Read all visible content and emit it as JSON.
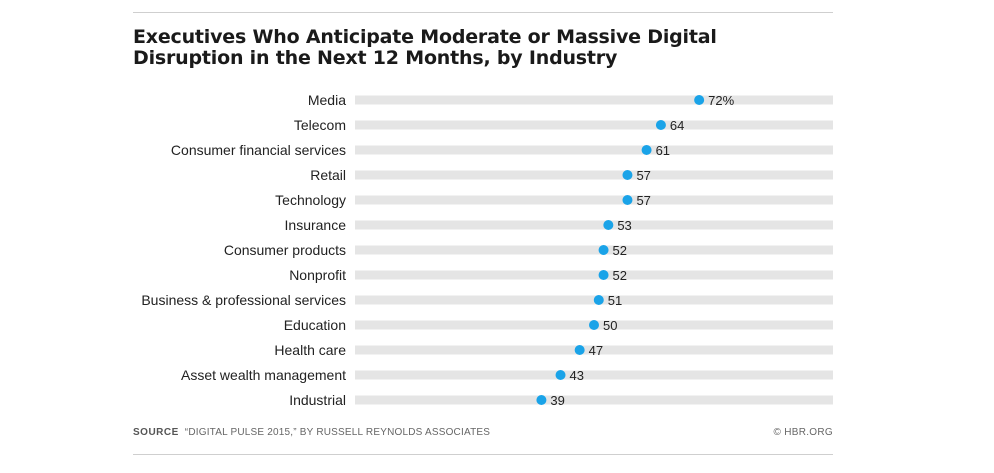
{
  "title": "Executives Who Anticipate Moderate or Massive Digital Disruption in the Next 12 Months, by Industry",
  "footer": {
    "source_label": "SOURCE",
    "source_text": "“DIGITAL PULSE 2015,” BY RUSSELL REYNOLDS ASSOCIATES",
    "credit": "© HBR.ORG"
  },
  "colors": {
    "dot": "#1aa3e8",
    "track": "#e5e5e5"
  },
  "chart_data": {
    "type": "scatter",
    "title": "Executives Who Anticipate Moderate or Massive Digital Disruption in the Next 12 Months, by Industry",
    "xlabel": "",
    "ylabel": "",
    "xlim": [
      0,
      100
    ],
    "grid": false,
    "legend": "none",
    "categories": [
      "Media",
      "Telecom",
      "Consumer financial services",
      "Retail",
      "Technology",
      "Insurance",
      "Consumer products",
      "Nonprofit",
      "Business & professional services",
      "Education",
      "Health care",
      "Asset wealth management",
      "Industrial"
    ],
    "values": [
      72,
      64,
      61,
      57,
      57,
      53,
      52,
      52,
      51,
      50,
      47,
      43,
      39
    ],
    "value_labels": [
      "72%",
      "64",
      "61",
      "57",
      "57",
      "53",
      "52",
      "52",
      "51",
      "50",
      "47",
      "43",
      "39"
    ]
  }
}
